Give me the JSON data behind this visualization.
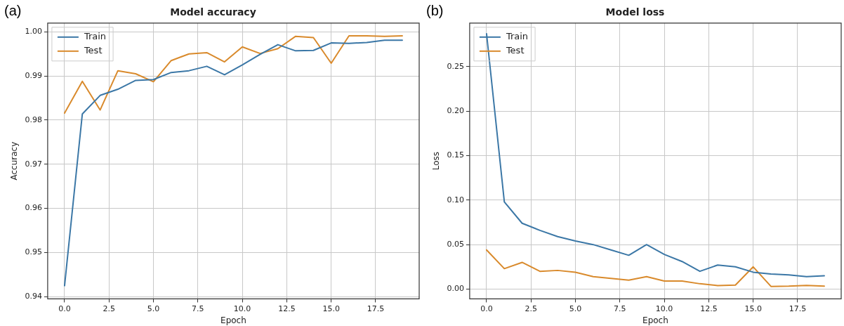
{
  "chart_data": [
    {
      "type": "line",
      "title": "Model accuracy",
      "xlabel": "Epoch",
      "ylabel": "Accuracy",
      "annotations": [
        "(a)"
      ],
      "x": [
        0,
        1,
        2,
        3,
        4,
        5,
        6,
        7,
        8,
        9,
        10,
        11,
        12,
        13,
        14,
        15,
        16,
        17,
        18,
        19
      ],
      "series": [
        {
          "name": "Train",
          "color": "#3b77a6",
          "values": [
            0.9425,
            0.9814,
            0.9856,
            0.987,
            0.989,
            0.9892,
            0.9908,
            0.9912,
            0.9922,
            0.9903,
            0.9925,
            0.9949,
            0.9971,
            0.9957,
            0.9958,
            0.9975,
            0.9974,
            0.9976,
            0.9981,
            0.9981
          ]
        },
        {
          "name": "Test",
          "color": "#d98a2c",
          "values": [
            0.9816,
            0.9888,
            0.9823,
            0.9912,
            0.9905,
            0.9887,
            0.9935,
            0.995,
            0.9953,
            0.9932,
            0.9966,
            0.9951,
            0.9962,
            0.999,
            0.9987,
            0.9929,
            0.9991,
            0.9991,
            0.999,
            0.9991
          ]
        }
      ],
      "xlim": [
        -0.95,
        19.95
      ],
      "xticks": [
        {
          "value": 0,
          "label": "0.0"
        },
        {
          "value": 2.5,
          "label": "2.5"
        },
        {
          "value": 5,
          "label": "5.0"
        },
        {
          "value": 7.5,
          "label": "7.5"
        },
        {
          "value": 10,
          "label": "10.0"
        },
        {
          "value": 12.5,
          "label": "12.5"
        },
        {
          "value": 15,
          "label": "15.0"
        },
        {
          "value": 17.5,
          "label": "17.5"
        }
      ],
      "ylim": [
        0.9395,
        1.002
      ],
      "yticks": [
        0.94,
        0.95,
        0.96,
        0.97,
        0.98,
        0.99,
        {
          "value": 1,
          "label": "1.00"
        }
      ],
      "grid": true,
      "legend": "top left",
      "marker": "none",
      "line_style": "solid"
    },
    {
      "type": "line",
      "title": "Model loss",
      "xlabel": "Epoch",
      "ylabel": "Loss",
      "annotations": [
        "(b)"
      ],
      "x": [
        0,
        1,
        2,
        3,
        4,
        5,
        6,
        7,
        8,
        9,
        10,
        11,
        12,
        13,
        14,
        15,
        16,
        17,
        18,
        19
      ],
      "series": [
        {
          "name": "Train",
          "color": "#3b77a6",
          "values": [
            0.287,
            0.098,
            0.074,
            0.066,
            0.059,
            0.054,
            0.05,
            0.044,
            0.038,
            0.05,
            0.039,
            0.031,
            0.02,
            0.027,
            0.025,
            0.019,
            0.017,
            0.016,
            0.014,
            0.015
          ]
        },
        {
          "name": "Test",
          "color": "#d98a2c",
          "values": [
            0.044,
            0.023,
            0.03,
            0.02,
            0.021,
            0.019,
            0.014,
            0.012,
            0.01,
            0.014,
            0.009,
            0.009,
            0.006,
            0.004,
            0.0045,
            0.025,
            0.003,
            0.0033,
            0.0042,
            0.0033
          ]
        }
      ],
      "xlim": [
        -0.95,
        19.95
      ],
      "xticks": [
        {
          "value": 0,
          "label": "0.0"
        },
        {
          "value": 2.5,
          "label": "2.5"
        },
        {
          "value": 5,
          "label": "5.0"
        },
        {
          "value": 7.5,
          "label": "7.5"
        },
        {
          "value": 10,
          "label": "10.0"
        },
        {
          "value": 12.5,
          "label": "12.5"
        },
        {
          "value": 15,
          "label": "15.0"
        },
        {
          "value": 17.5,
          "label": "17.5"
        }
      ],
      "ylim": [
        -0.011,
        0.299
      ],
      "yticks": [
        {
          "value": 0,
          "label": "0.00"
        },
        {
          "value": 0.05,
          "label": "0.05"
        },
        {
          "value": 0.1,
          "label": "0.10"
        },
        {
          "value": 0.15,
          "label": "0.15"
        },
        {
          "value": 0.2,
          "label": "0.20"
        },
        {
          "value": 0.25,
          "label": "0.25"
        }
      ],
      "grid": true,
      "legend": "top left",
      "marker": "none",
      "line_style": "solid"
    }
  ]
}
